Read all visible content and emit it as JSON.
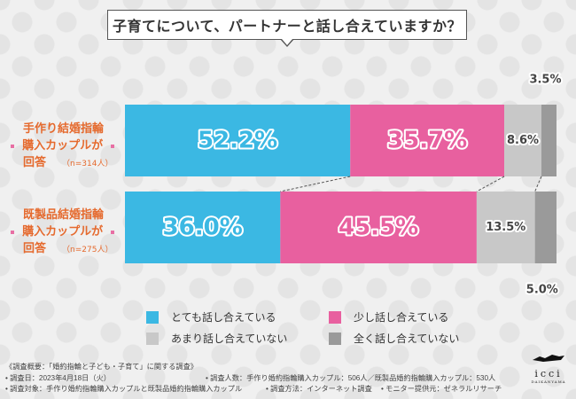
{
  "title": "子育てについて、パートナーと話し合えていますか？",
  "rows": [
    {
      "label_lines": [
        "手作り結婚指輪",
        "購入カップルが",
        "回答"
      ],
      "n": "（n=314人）"
    },
    {
      "label_lines": [
        "既製品結婚指輪",
        "購入カップルが",
        "回答"
      ],
      "n": "（n=275人）"
    }
  ],
  "chart_data": {
    "type": "stacked-bar-horizontal",
    "title": "子育てについて、パートナーと話し合えていますか？",
    "categories": [
      "手作り結婚指輪購入カップル",
      "既製品結婚指輪購入カップル"
    ],
    "series": [
      {
        "name": "とても話し合えている",
        "color": "#3bb8e3",
        "values": [
          52.2,
          36.0
        ],
        "labels": [
          "52.2%",
          "36.0%"
        ]
      },
      {
        "name": "少し話し合えている",
        "color": "#e8609f",
        "values": [
          35.7,
          45.5
        ],
        "labels": [
          "35.7%",
          "45.5%"
        ]
      },
      {
        "name": "あまり話し合えていない",
        "color": "#c8c8c8",
        "values": [
          8.6,
          13.5
        ],
        "labels": [
          "8.6%",
          "13.5%"
        ]
      },
      {
        "name": "全く話し合えていない",
        "color": "#9a9a9a",
        "values": [
          3.5,
          5.0
        ],
        "labels": [
          "3.5%",
          "5.0%"
        ]
      }
    ],
    "xlim": [
      0,
      100
    ]
  },
  "legend": [
    {
      "label": "とても話し合えている",
      "color": "#3bb8e3"
    },
    {
      "label": "少し話し合えている",
      "color": "#e8609f"
    },
    {
      "label": "あまり話し合えていない",
      "color": "#c8c8c8"
    },
    {
      "label": "全く話し合えていない",
      "color": "#9a9a9a"
    }
  ],
  "footer": {
    "line1": "《調査概要：「婚約指輪と子ども・子育て」に関する調査》",
    "line2a": "• 調査日：2023年4月18日（火）",
    "line2b": "• 調査人数：手作り婚約指輪購入カップル：506人／既製品婚約指輪購入カップル：530人",
    "line3a": "• 調査対象：手作り婚約指輪購入カップルと既製品婚約指輪購入カップル",
    "line3b": "• 調査方法：インターネット調査",
    "line3c": "• モニター提供元：ゼネラルリサーチ"
  },
  "logo": {
    "text": "icci",
    "sub": "DAIKANYAMA"
  }
}
